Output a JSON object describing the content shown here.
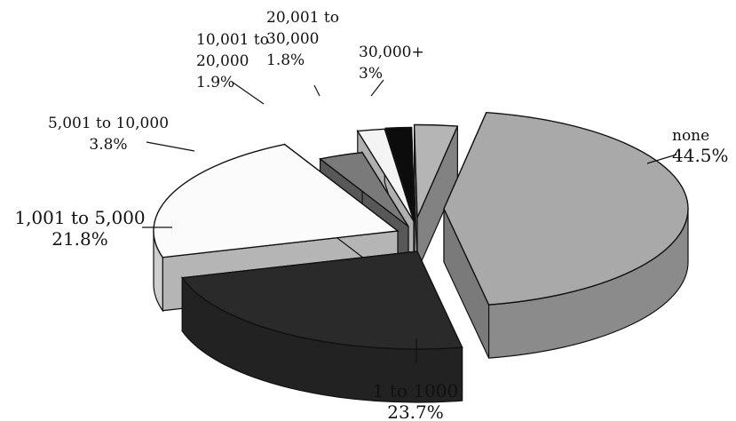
{
  "chart_data": {
    "type": "pie",
    "title": "",
    "slices": [
      {
        "category": "none",
        "value": 44.5,
        "value_label": "44.5%",
        "color": "#a9a9a9"
      },
      {
        "category": "1 to 1000",
        "value": 23.7,
        "value_label": "23.7%",
        "color": "#2a2a2a"
      },
      {
        "category": "1,001 to 5,000",
        "value": 21.8,
        "value_label": "21.8%",
        "color": "#fbfbfb"
      },
      {
        "category": "5,001 to 10,000",
        "value": 3.8,
        "value_label": "3.8%",
        "color": "#7a7a7a"
      },
      {
        "category": "10,001 to 20,000",
        "value": 1.9,
        "value_label": "1.9%",
        "color": "#f4f4f4"
      },
      {
        "category": "20,001 to 30,000",
        "value": 1.8,
        "value_label": "1.8%",
        "color": "#0c0c0c"
      },
      {
        "category": "30,000+",
        "value": 3.0,
        "value_label": "3%",
        "color": "#b5b5b5"
      }
    ],
    "style": "3d-exploded"
  }
}
